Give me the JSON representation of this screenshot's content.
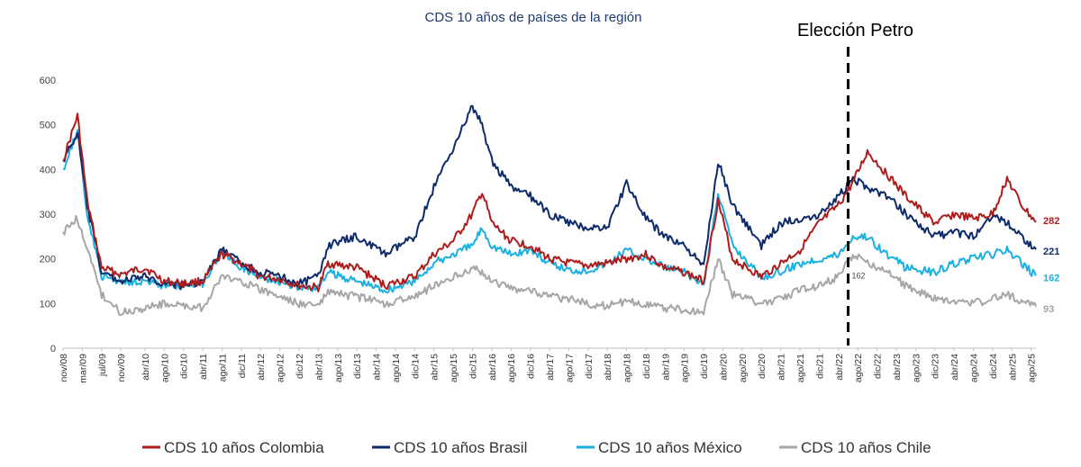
{
  "chart_data": {
    "type": "line",
    "title": "CDS 10 años de países de la región",
    "xlabel": "",
    "ylabel": "",
    "ylim": [
      0,
      600
    ],
    "yticks": [
      0,
      100,
      200,
      300,
      400,
      500,
      600
    ],
    "x_tick_labels": [
      "nov/08",
      "mar/09",
      "jul/09",
      "nov/09",
      "abr/10",
      "ago/10",
      "dic/10",
      "abr/11",
      "ago/11",
      "dic/11",
      "abr/12",
      "ago/12",
      "dic/12",
      "abr/13",
      "ago/13",
      "dic/13",
      "abr/14",
      "ago/14",
      "dic/14",
      "abr/15",
      "ago/15",
      "dic/15",
      "abr/16",
      "ago/16",
      "dic/16",
      "abr/17",
      "ago/17",
      "dic/17",
      "abr/18",
      "ago/18",
      "dic/18",
      "abr/19",
      "ago/19",
      "dic/19",
      "abr/20",
      "ago/20",
      "dic/20",
      "abr/21",
      "ago/21",
      "dic/21",
      "abr/22",
      "ago/22",
      "dic/22",
      "abr/23",
      "ago/23",
      "dic/23",
      "abr/24",
      "ago/24",
      "dic/24",
      "abr/25",
      "ago/25"
    ],
    "grid": false,
    "legend_position": "bottom",
    "annotation": {
      "label": "Elección Petro",
      "x": "jun/22",
      "style": "dashed vertical line"
    },
    "series": [
      {
        "name": "CDS 10 años Colombia",
        "color": "#b01c1c",
        "end_label": "282",
        "points": [
          [
            "nov/08",
            420
          ],
          [
            "feb/09",
            520
          ],
          [
            "abr/09",
            330
          ],
          [
            "jul/09",
            180
          ],
          [
            "nov/09",
            165
          ],
          [
            "abr/10",
            180
          ],
          [
            "ago/10",
            150
          ],
          [
            "dic/10",
            145
          ],
          [
            "abr/11",
            150
          ],
          [
            "ago/11",
            210
          ],
          [
            "dic/11",
            190
          ],
          [
            "abr/12",
            160
          ],
          [
            "ago/12",
            155
          ],
          [
            "dic/12",
            140
          ],
          [
            "abr/13",
            135
          ],
          [
            "jun/13",
            190
          ],
          [
            "dic/13",
            180
          ],
          [
            "jun/14",
            140
          ],
          [
            "dic/14",
            160
          ],
          [
            "abr/15",
            210
          ],
          [
            "ago/15",
            240
          ],
          [
            "dic/15",
            300
          ],
          [
            "feb/16",
            350
          ],
          [
            "abr/16",
            280
          ],
          [
            "ago/16",
            240
          ],
          [
            "dic/16",
            230
          ],
          [
            "abr/17",
            200
          ],
          [
            "ago/17",
            190
          ],
          [
            "dic/17",
            185
          ],
          [
            "abr/18",
            190
          ],
          [
            "ago/18",
            200
          ],
          [
            "dic/18",
            210
          ],
          [
            "abr/19",
            180
          ],
          [
            "ago/19",
            170
          ],
          [
            "dic/19",
            150
          ],
          [
            "mar/20",
            330
          ],
          [
            "jun/20",
            200
          ],
          [
            "dic/20",
            160
          ],
          [
            "abr/21",
            190
          ],
          [
            "ago/21",
            220
          ],
          [
            "dic/21",
            280
          ],
          [
            "abr/22",
            320
          ],
          [
            "jul/22",
            370
          ],
          [
            "oct/22",
            440
          ],
          [
            "feb/23",
            390
          ],
          [
            "jun/23",
            340
          ],
          [
            "dic/23",
            280
          ],
          [
            "abr/24",
            300
          ],
          [
            "ago/24",
            290
          ],
          [
            "dic/24",
            300
          ],
          [
            "mar/25",
            380
          ],
          [
            "jun/25",
            320
          ],
          [
            "sep/25",
            282
          ]
        ]
      },
      {
        "name": "CDS 10 años Brasil",
        "color": "#0d2a6b",
        "end_label": "221",
        "points": [
          [
            "nov/08",
            420
          ],
          [
            "feb/09",
            480
          ],
          [
            "abr/09",
            320
          ],
          [
            "jul/09",
            170
          ],
          [
            "nov/09",
            150
          ],
          [
            "abr/10",
            160
          ],
          [
            "ago/10",
            145
          ],
          [
            "dic/10",
            140
          ],
          [
            "abr/11",
            150
          ],
          [
            "ago/11",
            220
          ],
          [
            "dic/11",
            190
          ],
          [
            "abr/12",
            170
          ],
          [
            "ago/12",
            160
          ],
          [
            "dic/12",
            145
          ],
          [
            "abr/13",
            160
          ],
          [
            "jun/13",
            230
          ],
          [
            "dic/13",
            250
          ],
          [
            "jun/14",
            210
          ],
          [
            "dic/14",
            250
          ],
          [
            "abr/15",
            360
          ],
          [
            "ago/15",
            450
          ],
          [
            "dic/15",
            540
          ],
          [
            "feb/16",
            500
          ],
          [
            "abr/16",
            420
          ],
          [
            "ago/16",
            360
          ],
          [
            "dic/16",
            340
          ],
          [
            "abr/17",
            300
          ],
          [
            "ago/17",
            280
          ],
          [
            "dic/17",
            270
          ],
          [
            "abr/18",
            270
          ],
          [
            "ago/18",
            370
          ],
          [
            "dic/18",
            290
          ],
          [
            "abr/19",
            250
          ],
          [
            "ago/19",
            230
          ],
          [
            "dic/19",
            180
          ],
          [
            "mar/20",
            420
          ],
          [
            "jun/20",
            320
          ],
          [
            "dic/20",
            230
          ],
          [
            "abr/21",
            280
          ],
          [
            "ago/21",
            290
          ],
          [
            "dic/21",
            300
          ],
          [
            "abr/22",
            340
          ],
          [
            "jul/22",
            380
          ],
          [
            "oct/22",
            360
          ],
          [
            "feb/23",
            340
          ],
          [
            "jun/23",
            300
          ],
          [
            "dic/23",
            250
          ],
          [
            "abr/24",
            260
          ],
          [
            "ago/24",
            250
          ],
          [
            "dic/24",
            300
          ],
          [
            "mar/25",
            280
          ],
          [
            "jun/25",
            250
          ],
          [
            "sep/25",
            221
          ]
        ]
      },
      {
        "name": "CDS 10 años México",
        "color": "#1ab0e0",
        "end_label": "162",
        "points": [
          [
            "nov/08",
            400
          ],
          [
            "feb/09",
            490
          ],
          [
            "abr/09",
            300
          ],
          [
            "jul/09",
            160
          ],
          [
            "nov/09",
            150
          ],
          [
            "abr/10",
            150
          ],
          [
            "ago/10",
            140
          ],
          [
            "dic/10",
            140
          ],
          [
            "abr/11",
            145
          ],
          [
            "ago/11",
            220
          ],
          [
            "dic/11",
            180
          ],
          [
            "abr/12",
            160
          ],
          [
            "ago/12",
            150
          ],
          [
            "dic/12",
            135
          ],
          [
            "abr/13",
            135
          ],
          [
            "jun/13",
            170
          ],
          [
            "dic/13",
            150
          ],
          [
            "jun/14",
            130
          ],
          [
            "dic/14",
            150
          ],
          [
            "abr/15",
            190
          ],
          [
            "ago/15",
            210
          ],
          [
            "dic/15",
            230
          ],
          [
            "feb/16",
            270
          ],
          [
            "abr/16",
            230
          ],
          [
            "ago/16",
            210
          ],
          [
            "dic/16",
            220
          ],
          [
            "abr/17",
            190
          ],
          [
            "ago/17",
            175
          ],
          [
            "dic/17",
            175
          ],
          [
            "abr/18",
            190
          ],
          [
            "ago/18",
            220
          ],
          [
            "dic/18",
            200
          ],
          [
            "abr/19",
            180
          ],
          [
            "ago/19",
            170
          ],
          [
            "dic/19",
            140
          ],
          [
            "mar/20",
            350
          ],
          [
            "jun/20",
            230
          ],
          [
            "dic/20",
            160
          ],
          [
            "abr/21",
            170
          ],
          [
            "ago/21",
            190
          ],
          [
            "dic/21",
            200
          ],
          [
            "abr/22",
            210
          ],
          [
            "jul/22",
            250
          ],
          [
            "oct/22",
            250
          ],
          [
            "feb/23",
            210
          ],
          [
            "jun/23",
            180
          ],
          [
            "dic/23",
            170
          ],
          [
            "abr/24",
            190
          ],
          [
            "ago/24",
            200
          ],
          [
            "dic/24",
            210
          ],
          [
            "mar/25",
            220
          ],
          [
            "jun/25",
            190
          ],
          [
            "sep/25",
            162
          ]
        ]
      },
      {
        "name": "CDS 10 años Chile",
        "color": "#a6a6a6",
        "end_label": "93",
        "points": [
          [
            "nov/08",
            260
          ],
          [
            "feb/09",
            290
          ],
          [
            "abr/09",
            220
          ],
          [
            "jul/09",
            120
          ],
          [
            "nov/09",
            80
          ],
          [
            "abr/10",
            90
          ],
          [
            "ago/10",
            100
          ],
          [
            "dic/10",
            95
          ],
          [
            "abr/11",
            90
          ],
          [
            "ago/11",
            160
          ],
          [
            "dic/11",
            150
          ],
          [
            "abr/12",
            130
          ],
          [
            "ago/12",
            115
          ],
          [
            "dic/12",
            100
          ],
          [
            "abr/13",
            95
          ],
          [
            "jun/13",
            125
          ],
          [
            "dic/13",
            115
          ],
          [
            "jun/14",
            100
          ],
          [
            "dic/14",
            115
          ],
          [
            "abr/15",
            140
          ],
          [
            "ago/15",
            160
          ],
          [
            "dic/15",
            180
          ],
          [
            "feb/16",
            170
          ],
          [
            "abr/16",
            150
          ],
          [
            "ago/16",
            135
          ],
          [
            "dic/16",
            130
          ],
          [
            "abr/17",
            115
          ],
          [
            "ago/17",
            110
          ],
          [
            "dic/17",
            100
          ],
          [
            "abr/18",
            95
          ],
          [
            "ago/18",
            105
          ],
          [
            "dic/18",
            100
          ],
          [
            "abr/19",
            90
          ],
          [
            "ago/19",
            85
          ],
          [
            "dic/19",
            80
          ],
          [
            "mar/20",
            200
          ],
          [
            "jun/20",
            120
          ],
          [
            "dic/20",
            100
          ],
          [
            "abr/21",
            110
          ],
          [
            "ago/21",
            130
          ],
          [
            "dic/21",
            140
          ],
          [
            "abr/22",
            160
          ],
          [
            "jul/22",
            210
          ],
          [
            "oct/22",
            190
          ],
          [
            "feb/23",
            170
          ],
          [
            "jun/23",
            140
          ],
          [
            "dic/23",
            110
          ],
          [
            "abr/24",
            105
          ],
          [
            "ago/24",
            100
          ],
          [
            "dic/24",
            110
          ],
          [
            "mar/25",
            120
          ],
          [
            "jun/25",
            105
          ],
          [
            "sep/25",
            93
          ]
        ]
      }
    ]
  },
  "extra_labels": {
    "chile_callout": "162"
  }
}
